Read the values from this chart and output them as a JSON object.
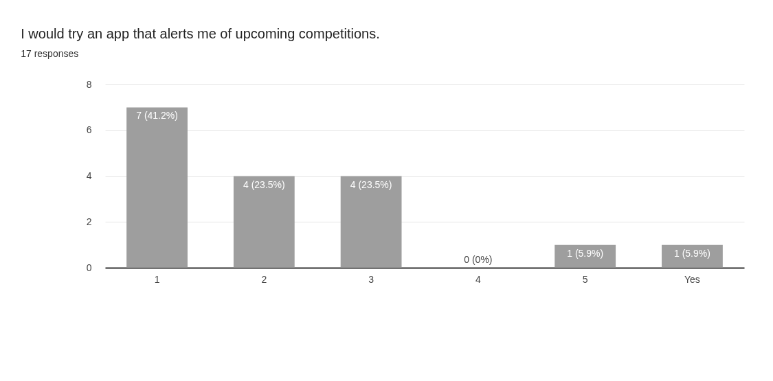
{
  "chart_data": {
    "type": "bar",
    "title": "I would try an app that alerts me of upcoming competitions.",
    "subtitle": "17 responses",
    "categories": [
      "1",
      "2",
      "3",
      "4",
      "5",
      "Yes"
    ],
    "values": [
      7,
      4,
      4,
      0,
      1,
      1
    ],
    "value_labels": [
      "7 (41.2%)",
      "4 (23.5%)",
      "4 (23.5%)",
      "0 (0%)",
      "1 (5.9%)",
      "1 (5.9%)"
    ],
    "color": "#9e9e9e",
    "ylim": [
      0,
      8
    ],
    "yticks": [
      0,
      2,
      4,
      6,
      8
    ],
    "grid": "y"
  }
}
